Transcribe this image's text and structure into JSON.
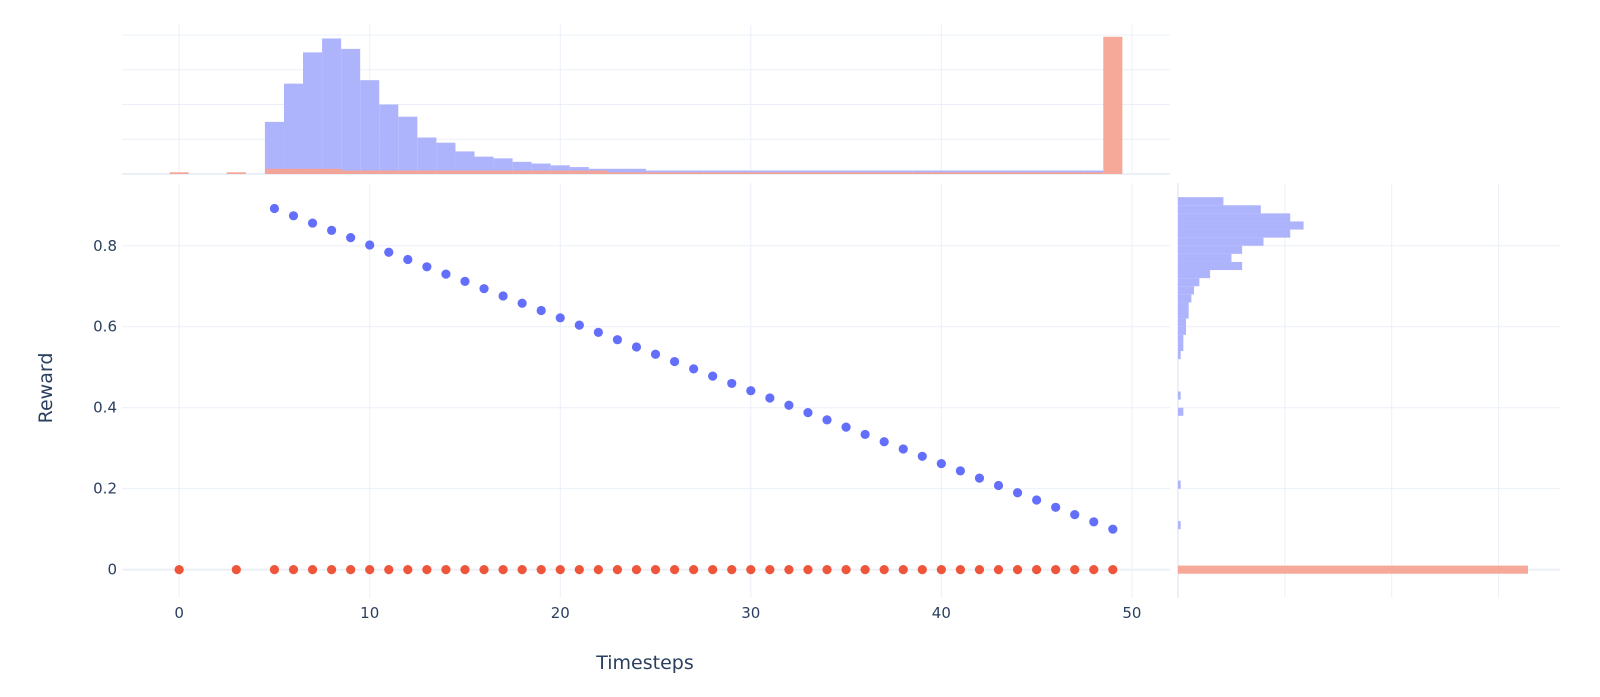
{
  "chart_data": {
    "type": "scatter",
    "xlabel": "Timesteps",
    "ylabel": "Reward",
    "xlim": [
      -3,
      52
    ],
    "ylim": [
      -0.07,
      0.955
    ],
    "x_ticks": [
      0,
      10,
      20,
      30,
      40,
      50
    ],
    "y_ticks": [
      0,
      0.2,
      0.4,
      0.6,
      0.8
    ],
    "y_tick_labels": [
      "0",
      "0.2",
      "0.4",
      "0.6",
      "0.8"
    ],
    "grid": true,
    "legend": "none",
    "colors": {
      "series_1": "#636efa",
      "series_2": "#ef553b",
      "series_1_hist": "#aab0fb",
      "series_2_hist": "#f5a393",
      "grid": "#ebf0f8",
      "text": "#2a3f5f"
    },
    "series": [
      {
        "x": [
          5,
          6,
          7,
          8,
          9,
          10,
          11,
          12,
          13,
          14,
          15,
          16,
          17,
          18,
          19,
          20,
          21,
          22,
          23,
          24,
          25,
          26,
          27,
          28,
          29,
          30,
          31,
          32,
          33,
          34,
          35,
          36,
          37,
          38,
          39,
          40,
          41,
          42,
          43,
          44,
          45,
          46,
          47,
          48,
          49
        ],
        "y": [
          0.892,
          0.874,
          0.856,
          0.838,
          0.82,
          0.802,
          0.784,
          0.766,
          0.748,
          0.73,
          0.712,
          0.694,
          0.676,
          0.658,
          0.64,
          0.622,
          0.604,
          0.586,
          0.568,
          0.55,
          0.532,
          0.514,
          0.496,
          0.478,
          0.46,
          0.442,
          0.424,
          0.406,
          0.388,
          0.37,
          0.352,
          0.334,
          0.316,
          0.298,
          0.28,
          0.262,
          0.244,
          0.226,
          0.208,
          0.19,
          0.172,
          0.154,
          0.136,
          0.118,
          0.1
        ]
      },
      {
        "x": [
          0,
          3,
          5,
          6,
          7,
          8,
          9,
          10,
          11,
          12,
          13,
          14,
          15,
          16,
          17,
          18,
          19,
          20,
          21,
          22,
          23,
          24,
          25,
          26,
          27,
          28,
          29,
          30,
          31,
          32,
          33,
          34,
          35,
          36,
          37,
          38,
          39,
          40,
          41,
          42,
          43,
          44,
          45,
          46,
          47,
          48,
          49
        ],
        "y": [
          0,
          0,
          0,
          0,
          0,
          0,
          0,
          0,
          0,
          0,
          0,
          0,
          0,
          0,
          0,
          0,
          0,
          0,
          0,
          0,
          0,
          0,
          0,
          0,
          0,
          0,
          0,
          0,
          0,
          0,
          0,
          0,
          0,
          0,
          0,
          0,
          0,
          0,
          0,
          0,
          0,
          0,
          0,
          0,
          0,
          0,
          0
        ]
      }
    ],
    "marginal_x_histogram": {
      "bin_width": 1,
      "series_1_counts": [
        [
          5,
          30
        ],
        [
          6,
          52
        ],
        [
          7,
          70
        ],
        [
          8,
          78
        ],
        [
          9,
          72
        ],
        [
          10,
          54
        ],
        [
          11,
          40
        ],
        [
          12,
          33
        ],
        [
          13,
          21
        ],
        [
          14,
          18
        ],
        [
          15,
          13
        ],
        [
          16,
          10
        ],
        [
          17,
          9
        ],
        [
          18,
          7
        ],
        [
          19,
          6
        ],
        [
          20,
          5
        ],
        [
          21,
          4
        ],
        [
          22,
          3
        ],
        [
          23,
          3
        ],
        [
          24,
          3
        ],
        [
          25,
          2
        ],
        [
          26,
          2
        ],
        [
          27,
          2
        ],
        [
          28,
          2
        ],
        [
          29,
          2
        ],
        [
          30,
          2
        ],
        [
          31,
          2
        ],
        [
          32,
          2
        ],
        [
          33,
          2
        ],
        [
          34,
          2
        ],
        [
          35,
          2
        ],
        [
          36,
          2
        ],
        [
          37,
          2
        ],
        [
          38,
          2
        ],
        [
          39,
          2
        ],
        [
          40,
          2
        ],
        [
          41,
          2
        ],
        [
          42,
          2
        ],
        [
          43,
          2
        ],
        [
          44,
          2
        ],
        [
          45,
          2
        ],
        [
          46,
          2
        ],
        [
          47,
          2
        ],
        [
          48,
          2
        ]
      ],
      "series_2_counts": [
        [
          0,
          1
        ],
        [
          3,
          1
        ],
        [
          5,
          3
        ],
        [
          6,
          3
        ],
        [
          7,
          3
        ],
        [
          8,
          3
        ],
        [
          9,
          2
        ],
        [
          10,
          2
        ],
        [
          11,
          2
        ],
        [
          12,
          2
        ],
        [
          13,
          2
        ],
        [
          14,
          2
        ],
        [
          15,
          2
        ],
        [
          16,
          2
        ],
        [
          17,
          2
        ],
        [
          18,
          2
        ],
        [
          19,
          2
        ],
        [
          20,
          2
        ],
        [
          21,
          2
        ],
        [
          22,
          2
        ],
        [
          23,
          1
        ],
        [
          24,
          1
        ],
        [
          25,
          1
        ],
        [
          26,
          1
        ],
        [
          27,
          1
        ],
        [
          28,
          1
        ],
        [
          29,
          1
        ],
        [
          30,
          1
        ],
        [
          31,
          1
        ],
        [
          32,
          1
        ],
        [
          33,
          1
        ],
        [
          34,
          1
        ],
        [
          35,
          1
        ],
        [
          36,
          1
        ],
        [
          37,
          1
        ],
        [
          38,
          1
        ],
        [
          39,
          1
        ],
        [
          40,
          1
        ],
        [
          41,
          1
        ],
        [
          42,
          1
        ],
        [
          43,
          1
        ],
        [
          44,
          1
        ],
        [
          45,
          1
        ],
        [
          46,
          1
        ],
        [
          47,
          1
        ],
        [
          48,
          1
        ],
        [
          49,
          79
        ]
      ]
    },
    "marginal_y_histogram": {
      "series_1_bins": [
        [
          0.1,
          0.12,
          1
        ],
        [
          0.2,
          0.22,
          1
        ],
        [
          0.38,
          0.4,
          2
        ],
        [
          0.42,
          0.44,
          1
        ],
        [
          0.52,
          0.54,
          1
        ],
        [
          0.54,
          0.56,
          2
        ],
        [
          0.56,
          0.58,
          2
        ],
        [
          0.58,
          0.6,
          3
        ],
        [
          0.6,
          0.62,
          3
        ],
        [
          0.62,
          0.64,
          4
        ],
        [
          0.64,
          0.66,
          4
        ],
        [
          0.66,
          0.68,
          5
        ],
        [
          0.68,
          0.7,
          6
        ],
        [
          0.7,
          0.72,
          8
        ],
        [
          0.72,
          0.74,
          12
        ],
        [
          0.74,
          0.76,
          24
        ],
        [
          0.76,
          0.78,
          20
        ],
        [
          0.78,
          0.8,
          24
        ],
        [
          0.8,
          0.82,
          32
        ],
        [
          0.82,
          0.84,
          42
        ],
        [
          0.84,
          0.86,
          47
        ],
        [
          0.86,
          0.88,
          42
        ],
        [
          0.88,
          0.9,
          31
        ],
        [
          0.9,
          0.92,
          17
        ]
      ],
      "series_2_bins": [
        [
          -0.01,
          0.01,
          131
        ]
      ]
    }
  }
}
